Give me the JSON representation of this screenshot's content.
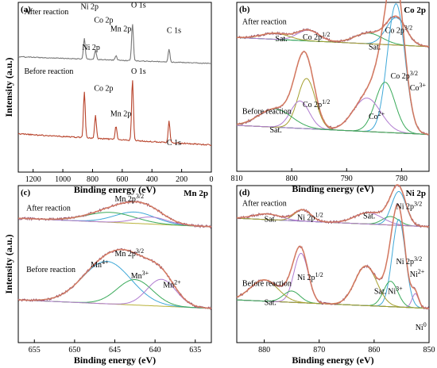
{
  "colors": {
    "after_survey": "#777777",
    "before_survey": "#b8442c",
    "raw_data": "#8b4a6e",
    "fit_envelope": "#d97a5a",
    "background": "#b9b23a",
    "comp_blue": "#3fa8d8",
    "comp_purple": "#b07cd0",
    "comp_green": "#3aaa5a",
    "comp_olive": "#a5a030"
  },
  "chart_data": [
    {
      "type": "line",
      "panel": "(a)",
      "title": "",
      "xlabel": "Binding energy (eV)",
      "ylabel": "Intensity (a.u.)",
      "xlim": [
        1300,
        0
      ],
      "xticks": [
        "1200",
        "1000",
        "800",
        "600",
        "400",
        "200",
        "0"
      ],
      "reversed_x": true,
      "series": [
        {
          "name": "After reaction",
          "peaks": [
            {
              "x": 855,
              "h": 0.55
            },
            {
              "x": 780,
              "h": 0.25
            },
            {
              "x": 642,
              "h": 0.12
            },
            {
              "x": 531,
              "h": 1.0
            },
            {
              "x": 285,
              "h": 0.35
            }
          ]
        },
        {
          "name": "Before reaction",
          "peaks": [
            {
              "x": 855,
              "h": 0.75
            },
            {
              "x": 780,
              "h": 0.38
            },
            {
              "x": 642,
              "h": 0.22
            },
            {
              "x": 531,
              "h": 1.0
            },
            {
              "x": 285,
              "h": 0.35
            }
          ]
        }
      ],
      "annotations": [
        {
          "text": "After reaction",
          "sub": "",
          "x": 1260,
          "y": 0.93
        },
        {
          "text": "Ni 2p",
          "sub": "",
          "x": 880,
          "y": 0.96
        },
        {
          "text": "Co 2p",
          "sub": "",
          "x": 790,
          "y": 0.88
        },
        {
          "text": "Mn 2p",
          "sub": "",
          "x": 680,
          "y": 0.83
        },
        {
          "text": "O 1s",
          "sub": "",
          "x": 540,
          "y": 0.97
        },
        {
          "text": "C 1s",
          "sub": "",
          "x": 300,
          "y": 0.82
        },
        {
          "text": "Ni 2p",
          "sub": "",
          "x": 870,
          "y": 0.72
        },
        {
          "text": "Before reaction",
          "sub": "",
          "x": 1260,
          "y": 0.58
        },
        {
          "text": "O 1s",
          "sub": "",
          "x": 540,
          "y": 0.58
        },
        {
          "text": "Co 2p",
          "sub": "",
          "x": 790,
          "y": 0.48
        },
        {
          "text": "Mn 2p",
          "sub": "",
          "x": 680,
          "y": 0.33
        },
        {
          "text": "C 1s",
          "sub": "",
          "x": 300,
          "y": 0.16
        }
      ]
    },
    {
      "type": "line",
      "panel": "(b)",
      "title": "Co 2p",
      "xlabel": "Binding energy (eV)",
      "ylabel": "",
      "xlim": [
        810,
        775
      ],
      "xticks": [
        "810",
        "800",
        "790",
        "780"
      ],
      "reversed_x": true,
      "series": [
        {
          "name": "After reaction",
          "components": [
            {
              "x": 781.0,
              "w": 1.8,
              "h": 0.18
            },
            {
              "x": 786.0,
              "w": 2.5,
              "h": 0.07
            },
            {
              "x": 797.0,
              "w": 2.0,
              "h": 0.07
            },
            {
              "x": 803.0,
              "w": 2.5,
              "h": 0.04
            }
          ]
        },
        {
          "name": "Before reaction",
          "components": [
            {
              "x": 781.0,
              "w": 1.6,
              "h": 0.85
            },
            {
              "x": 783.0,
              "w": 1.8,
              "h": 0.33
            },
            {
              "x": 786.3,
              "w": 2.5,
              "h": 0.22
            },
            {
              "x": 797.3,
              "w": 1.6,
              "h": 0.33
            },
            {
              "x": 798.5,
              "w": 1.7,
              "h": 0.18
            },
            {
              "x": 803.0,
              "w": 3.0,
              "h": 0.12
            }
          ]
        }
      ],
      "annotations": [
        {
          "text": "After reaction",
          "sub": "",
          "x": 809,
          "y": 0.87
        },
        {
          "text": "Sat.",
          "sub": "",
          "x": 803,
          "y": 0.77
        },
        {
          "text": "Co 2p",
          "sub": "1/2",
          "x": 798,
          "y": 0.78
        },
        {
          "text": "Co 2p",
          "sub": "3/2",
          "x": 783,
          "y": 0.82
        },
        {
          "text": "Sat.",
          "sub": "",
          "x": 786,
          "y": 0.72
        },
        {
          "text": "Co 2p",
          "sub": "3/2",
          "x": 782,
          "y": 0.55
        },
        {
          "text": "Co",
          "sub": "3+",
          "x": 778.5,
          "y": 0.48
        },
        {
          "text": "Co 2p",
          "sub": "1/2",
          "x": 798,
          "y": 0.38
        },
        {
          "text": "Before reaction",
          "sub": "",
          "x": 809,
          "y": 0.34
        },
        {
          "text": "Co",
          "sub": "2+",
          "x": 786,
          "y": 0.31
        },
        {
          "text": "Sat.",
          "sub": "",
          "x": 804,
          "y": 0.23
        }
      ]
    },
    {
      "type": "line",
      "panel": "(c)",
      "title": "Mn 2p",
      "xlabel": "Binding energy (eV)",
      "ylabel": "Intensity (a.u.)",
      "xlim": [
        657,
        633
      ],
      "xticks": [
        "655",
        "650",
        "645",
        "640",
        "635"
      ],
      "reversed_x": true,
      "series": [
        {
          "name": "After reaction",
          "components": [
            {
              "x": 642.5,
              "w": 2.5,
              "h": 0.08
            },
            {
              "x": 645.5,
              "w": 3.0,
              "h": 0.07
            },
            {
              "x": 640.5,
              "w": 2.0,
              "h": 0.05
            }
          ]
        },
        {
          "name": "Before reaction",
          "components": [
            {
              "x": 646.0,
              "w": 3.0,
              "h": 0.3
            },
            {
              "x": 642.5,
              "w": 2.2,
              "h": 0.18
            },
            {
              "x": 639.2,
              "w": 1.8,
              "h": 0.19
            }
          ]
        }
      ],
      "annotations": [
        {
          "text": "After reaction",
          "sub": "",
          "x": 656,
          "y": 0.84
        },
        {
          "text": "Mn 2p",
          "sub": "3/2",
          "x": 645,
          "y": 0.9
        },
        {
          "text": "Mn 2p",
          "sub": "3/2",
          "x": 645,
          "y": 0.55
        },
        {
          "text": "Mn",
          "sub": "4+",
          "x": 648,
          "y": 0.48
        },
        {
          "text": "Before reaction",
          "sub": "",
          "x": 656,
          "y": 0.45
        },
        {
          "text": "Mn",
          "sub": "3+",
          "x": 643,
          "y": 0.41
        },
        {
          "text": "Mn",
          "sub": "2+",
          "x": 639,
          "y": 0.35
        }
      ]
    },
    {
      "type": "line",
      "panel": "(d)",
      "title": "Ni 2p",
      "xlabel": "Binding energy (eV)",
      "ylabel": "",
      "xlim": [
        885,
        850
      ],
      "xticks": [
        "880",
        "870",
        "860",
        "850"
      ],
      "reversed_x": true,
      "series": [
        {
          "name": "After reaction",
          "components": [
            {
              "x": 855.5,
              "w": 1.3,
              "h": 0.24
            },
            {
              "x": 857.0,
              "w": 1.5,
              "h": 0.06
            },
            {
              "x": 861.0,
              "w": 2.5,
              "h": 0.08
            },
            {
              "x": 873.0,
              "w": 1.5,
              "h": 0.08
            },
            {
              "x": 879.5,
              "w": 2.5,
              "h": 0.04
            }
          ]
        },
        {
          "name": "Before reaction",
          "components": [
            {
              "x": 855.5,
              "w": 1.2,
              "h": 0.62
            },
            {
              "x": 857.0,
              "w": 1.3,
              "h": 0.18
            },
            {
              "x": 852.5,
              "w": 0.6,
              "h": 0.1
            },
            {
              "x": 861.5,
              "w": 2.0,
              "h": 0.28
            },
            {
              "x": 873.3,
              "w": 1.3,
              "h": 0.35
            },
            {
              "x": 875.0,
              "w": 1.5,
              "h": 0.08
            },
            {
              "x": 880.0,
              "w": 2.5,
              "h": 0.15
            }
          ]
        }
      ],
      "annotations": [
        {
          "text": "After reaction",
          "sub": "",
          "x": 884,
          "y": 0.87
        },
        {
          "text": "Sat.",
          "sub": "",
          "x": 880,
          "y": 0.77
        },
        {
          "text": "Ni 2p",
          "sub": "1/2",
          "x": 874,
          "y": 0.78
        },
        {
          "text": "Sat.",
          "sub": "",
          "x": 862,
          "y": 0.79
        },
        {
          "text": "Ni 2p",
          "sub": "3/2",
          "x": 856,
          "y": 0.85
        },
        {
          "text": "Ni 2p",
          "sub": "3/2",
          "x": 856,
          "y": 0.5
        },
        {
          "text": "Ni",
          "sub": "2+",
          "x": 853.5,
          "y": 0.42
        },
        {
          "text": "Ni 2p",
          "sub": "1/2",
          "x": 874,
          "y": 0.4
        },
        {
          "text": "Before reaction",
          "sub": "",
          "x": 884,
          "y": 0.36
        },
        {
          "text": "Sat.",
          "sub": "",
          "x": 860,
          "y": 0.31
        },
        {
          "text": "Ni",
          "sub": "3+",
          "x": 857.5,
          "y": 0.31
        },
        {
          "text": "Sat.",
          "sub": "",
          "x": 880,
          "y": 0.24
        },
        {
          "text": "Ni",
          "sub": "0",
          "x": 852.5,
          "y": 0.08
        }
      ]
    }
  ]
}
